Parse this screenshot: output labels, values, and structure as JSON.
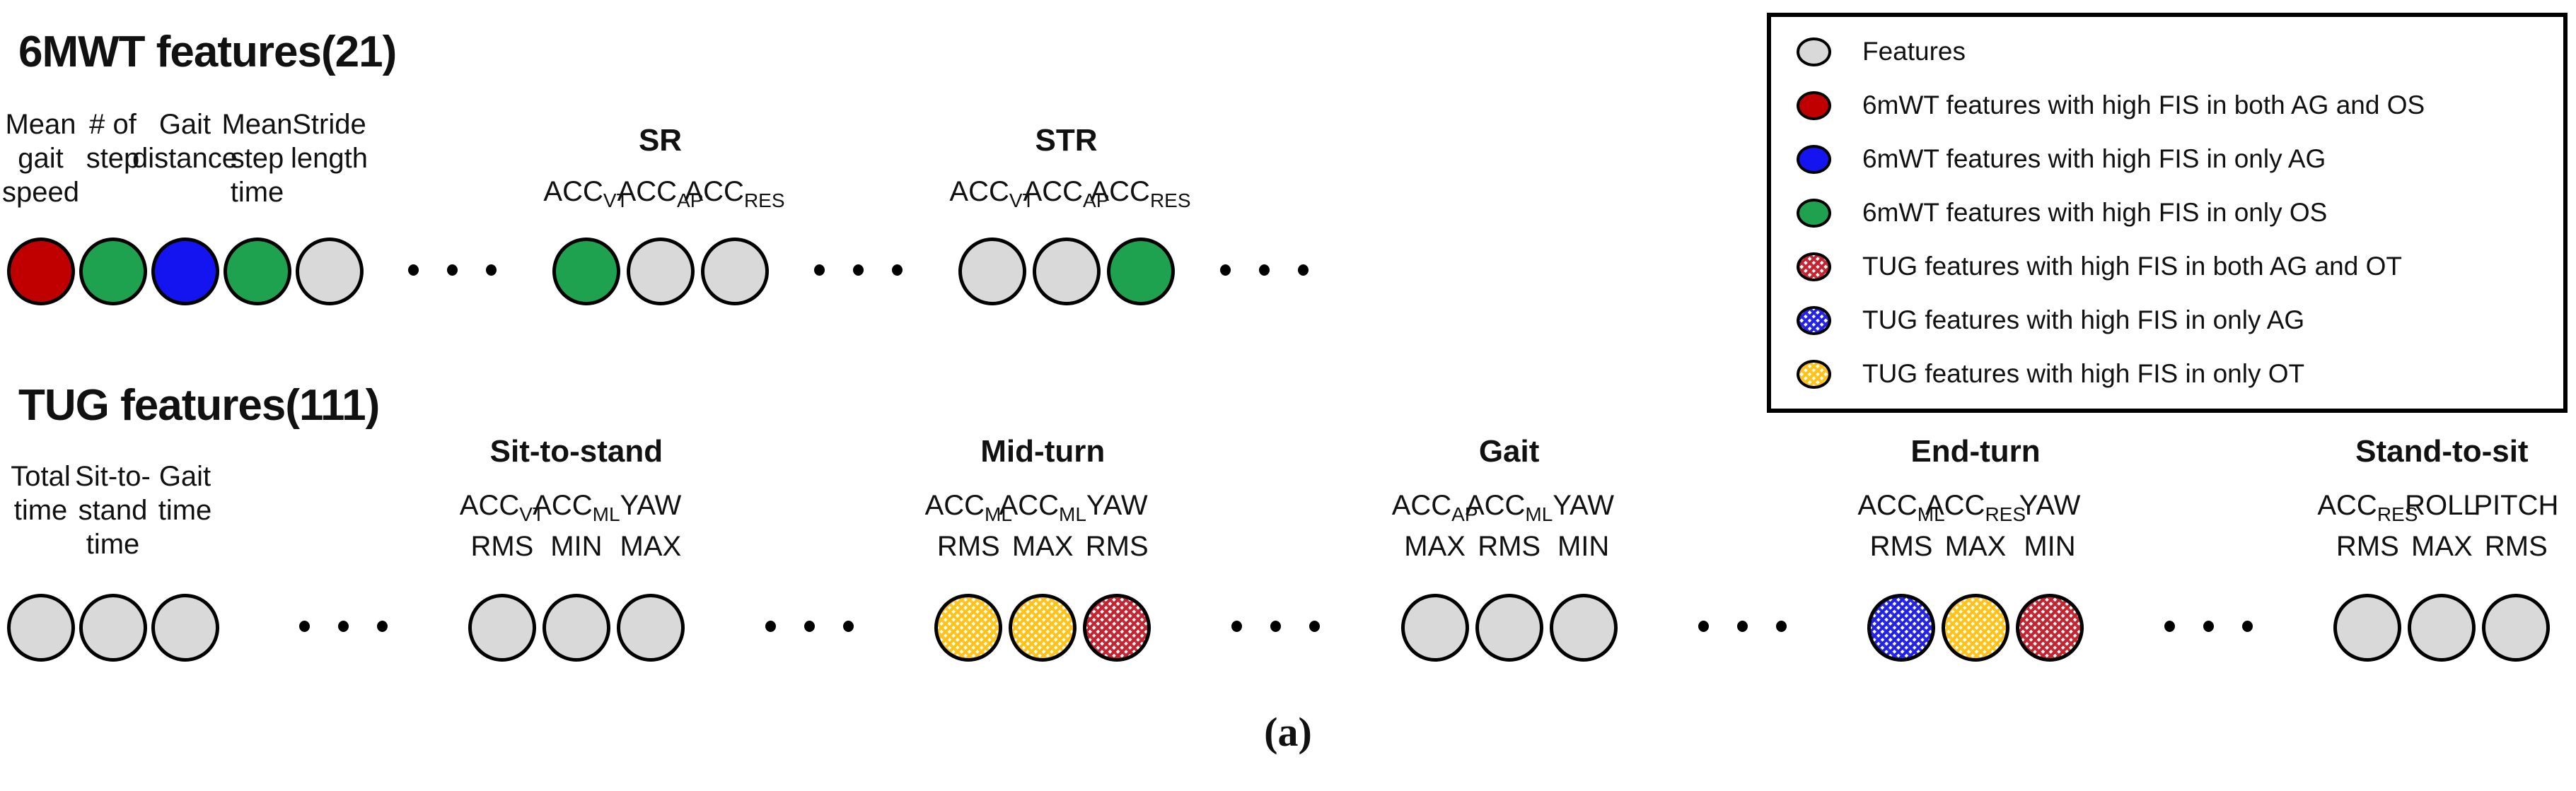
{
  "figure": {
    "caption": "(a)"
  },
  "colors": {
    "solid_red": "#C00000",
    "solid_green": "#1FA24F",
    "solid_blue": "#1414F0",
    "solid_gray": "#D9D9D9",
    "hatch_yellow": "#FFC217",
    "hatch_red": "#C42330",
    "hatch_blue": "#2121E8",
    "outline": "#000000"
  },
  "mwt": {
    "title": "6MWT features(21)",
    "features": [
      {
        "label": "Mean\ngait\nspeed",
        "fill": "c-red"
      },
      {
        "label": "# of\nstep",
        "fill": "c-green"
      },
      {
        "label": "Gait\ndistance",
        "fill": "c-blue"
      },
      {
        "label": "Mean\nstep\ntime",
        "fill": "c-green"
      },
      {
        "label": "Stride\nlength",
        "fill": "c-gray"
      }
    ],
    "groups": [
      {
        "name": "SR",
        "features": [
          {
            "main": "ACC",
            "sub": "VT",
            "line2": "",
            "fill": "c-green"
          },
          {
            "main": "ACC",
            "sub": "AP",
            "line2": "",
            "fill": "c-gray"
          },
          {
            "main": "ACC",
            "sub": "RES",
            "line2": "",
            "fill": "c-gray"
          }
        ]
      },
      {
        "name": "STR",
        "features": [
          {
            "main": "ACC",
            "sub": "VT",
            "line2": "",
            "fill": "c-gray"
          },
          {
            "main": "ACC",
            "sub": "AP",
            "line2": "",
            "fill": "c-gray"
          },
          {
            "main": "ACC",
            "sub": "RES",
            "line2": "",
            "fill": "c-green"
          }
        ]
      }
    ]
  },
  "tug": {
    "title": "TUG features(111)",
    "features": [
      {
        "label": "Total\ntime",
        "fill": "c-gray"
      },
      {
        "label": "Sit-to-\nstand\ntime",
        "fill": "c-gray"
      },
      {
        "label": "Gait\ntime",
        "fill": "c-gray"
      }
    ],
    "groups": [
      {
        "name": "Sit-to-stand",
        "features": [
          {
            "main": "ACC",
            "sub": "VT",
            "line2": "RMS",
            "fill": "c-gray"
          },
          {
            "main": "ACC",
            "sub": "ML",
            "line2": "MIN",
            "fill": "c-gray"
          },
          {
            "main": "YAW",
            "sub": "",
            "line2": "MAX",
            "fill": "c-gray"
          }
        ]
      },
      {
        "name": "Mid-turn",
        "features": [
          {
            "main": "ACC",
            "sub": "ML",
            "line2": "RMS",
            "fill": "c-hyellow"
          },
          {
            "main": "ACC",
            "sub": "ML",
            "line2": "MAX",
            "fill": "c-hyellow"
          },
          {
            "main": "YAW",
            "sub": "",
            "line2": "RMS",
            "fill": "c-hred"
          }
        ]
      },
      {
        "name": "Gait",
        "features": [
          {
            "main": "ACC",
            "sub": "AP",
            "line2": "MAX",
            "fill": "c-gray"
          },
          {
            "main": "ACC",
            "sub": "ML",
            "line2": "RMS",
            "fill": "c-gray"
          },
          {
            "main": "YAW",
            "sub": "",
            "line2": "MIN",
            "fill": "c-gray"
          }
        ]
      },
      {
        "name": "End-turn",
        "features": [
          {
            "main": "ACC",
            "sub": "ML",
            "line2": "RMS",
            "fill": "c-hblue"
          },
          {
            "main": "ACC",
            "sub": "RES",
            "line2": "MAX",
            "fill": "c-hyellow"
          },
          {
            "main": "YAW",
            "sub": "",
            "line2": "MIN",
            "fill": "c-hred"
          }
        ]
      },
      {
        "name": "Stand-to-sit",
        "features": [
          {
            "main": "ACC",
            "sub": "RES",
            "line2": "RMS",
            "fill": "c-gray"
          },
          {
            "main": "ROLL",
            "sub": "",
            "line2": "MAX",
            "fill": "c-gray"
          },
          {
            "main": "PITCH",
            "sub": "",
            "line2": "RMS",
            "fill": "c-gray"
          }
        ]
      }
    ]
  },
  "legend": {
    "items": [
      {
        "label": "Features",
        "fill": "c-gray"
      },
      {
        "label": "6mWT features with high FIS in both AG and OS",
        "fill": "c-red"
      },
      {
        "label": "6mWT features with high FIS in only AG",
        "fill": "c-blue"
      },
      {
        "label": "6mWT features with high FIS in only OS",
        "fill": "c-green"
      },
      {
        "label": "TUG features with high FIS in both AG and OT",
        "fill": "c-hred"
      },
      {
        "label": "TUG features with high FIS in only AG",
        "fill": "c-hblue"
      },
      {
        "label": "TUG features with high FIS in only OT",
        "fill": "c-hyellow"
      }
    ]
  }
}
